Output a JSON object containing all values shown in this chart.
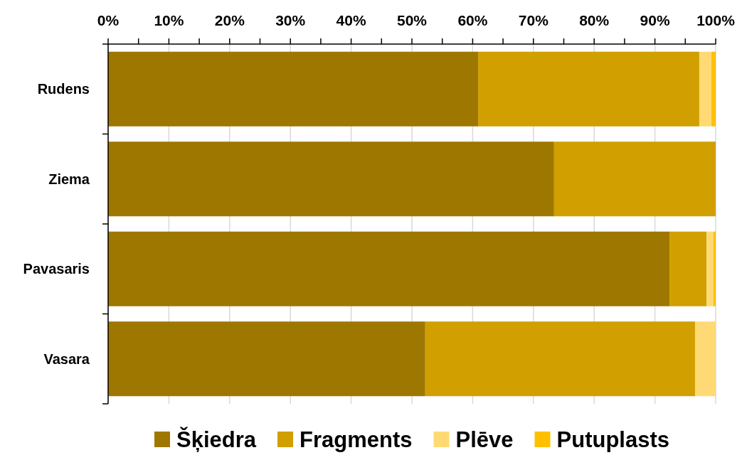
{
  "chart_data": {
    "type": "bar",
    "orientation": "horizontal",
    "stacked": true,
    "categories": [
      "Rudens",
      "Ziema",
      "Pavasaris",
      "Vasara"
    ],
    "series": [
      {
        "name": "Šķiedra",
        "color": "#9e7700",
        "values": [
          60.9,
          73.4,
          92.4,
          52.2
        ]
      },
      {
        "name": "Fragments",
        "color": "#d19f00",
        "values": [
          36.4,
          26.6,
          6.1,
          44.4
        ]
      },
      {
        "name": "Plēve",
        "color": "#ffda74",
        "values": [
          2.0,
          0,
          1.1,
          3.4
        ]
      },
      {
        "name": "Putuplasts",
        "color": "#ffc000",
        "values": [
          0.7,
          0,
          0.4,
          0
        ]
      }
    ],
    "xlim": [
      0,
      100
    ],
    "xticks": [
      {
        "value": 0,
        "label": "0%"
      },
      {
        "value": 5,
        "label": null
      },
      {
        "value": 10,
        "label": "10%"
      },
      {
        "value": 15,
        "label": null
      },
      {
        "value": 20,
        "label": "20%"
      },
      {
        "value": 25,
        "label": null
      },
      {
        "value": 30,
        "label": "30%"
      },
      {
        "value": 35,
        "label": null
      },
      {
        "value": 40,
        "label": "40%"
      },
      {
        "value": 45,
        "label": null
      },
      {
        "value": 50,
        "label": "50%"
      },
      {
        "value": 55,
        "label": null
      },
      {
        "value": 60,
        "label": "60%"
      },
      {
        "value": 65,
        "label": null
      },
      {
        "value": 70,
        "label": "70%"
      },
      {
        "value": 75,
        "label": null
      },
      {
        "value": 80,
        "label": "80%"
      },
      {
        "value": 85,
        "label": null
      },
      {
        "value": 90,
        "label": "90%"
      },
      {
        "value": 95,
        "label": null
      },
      {
        "value": 100,
        "label": "100%"
      }
    ],
    "grid": "x",
    "legend": "bottom"
  }
}
